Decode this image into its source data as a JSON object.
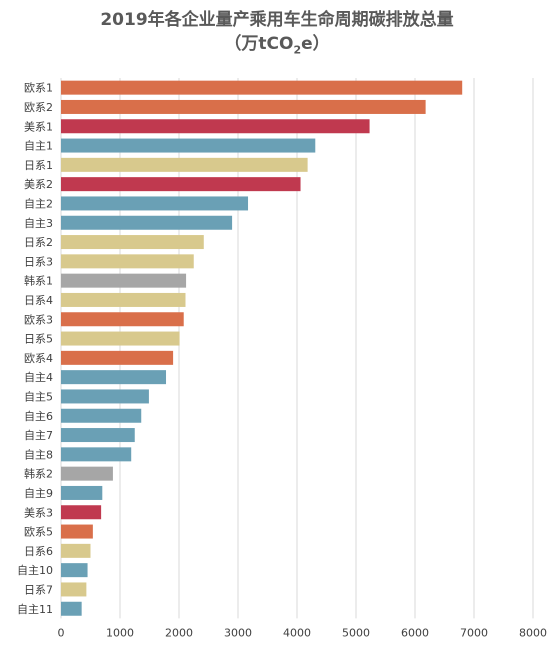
{
  "chart_data": {
    "type": "bar",
    "orientation": "horizontal",
    "title_line1": "2019年各企业量产乘用车生命周期碳排放总量",
    "title_line2_prefix": "（万tCO",
    "title_line2_sub": "2",
    "title_line2_suffix": "e）",
    "xlim": [
      0,
      8000
    ],
    "x_ticks": [
      "0",
      "1000",
      "2000",
      "3000",
      "4000",
      "5000",
      "6000",
      "7000",
      "8000"
    ],
    "grid": true,
    "categories": [
      "欧系1",
      "欧系2",
      "美系1",
      "自主1",
      "日系1",
      "美系2",
      "自主2",
      "自主3",
      "日系2",
      "日系3",
      "韩系1",
      "日系4",
      "欧系3",
      "日系5",
      "欧系4",
      "自主4",
      "自主5",
      "自主6",
      "自主7",
      "自主8",
      "韩系2",
      "自主9",
      "美系3",
      "欧系5",
      "日系6",
      "自主10",
      "日系7",
      "自主11"
    ],
    "values": [
      6800,
      6180,
      5230,
      4310,
      4180,
      4060,
      3170,
      2900,
      2420,
      2250,
      2120,
      2110,
      2080,
      2010,
      1900,
      1780,
      1490,
      1360,
      1250,
      1190,
      880,
      700,
      680,
      540,
      500,
      450,
      430,
      350
    ],
    "groups": [
      "欧系",
      "欧系",
      "美系",
      "自主",
      "日系",
      "美系",
      "自主",
      "自主",
      "日系",
      "日系",
      "韩系",
      "日系",
      "欧系",
      "日系",
      "欧系",
      "自主",
      "自主",
      "自主",
      "自主",
      "自主",
      "韩系",
      "自主",
      "美系",
      "欧系",
      "日系",
      "自主",
      "日系",
      "自主"
    ],
    "colors": {
      "欧系": "#D96F4A",
      "美系": "#C0394F",
      "自主": "#6AA0B5",
      "日系": "#D8C98D",
      "韩系": "#A6A6A6"
    }
  }
}
